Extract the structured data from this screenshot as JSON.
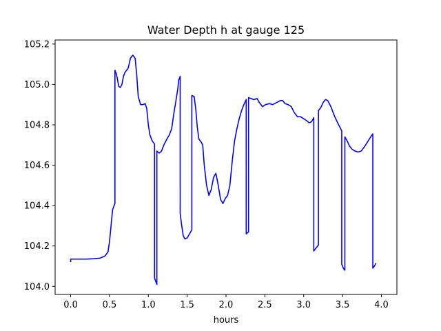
{
  "chart_data": {
    "type": "line",
    "title": "Water Depth h at gauge 125",
    "xlabel": "hours",
    "ylabel": "",
    "xlim": [
      -0.2,
      4.2
    ],
    "ylim": [
      103.96,
      105.22
    ],
    "xticks": [
      0.0,
      0.5,
      1.0,
      1.5,
      2.0,
      2.5,
      3.0,
      3.5,
      4.0
    ],
    "xtick_labels": [
      "0.0",
      "0.5",
      "1.0",
      "1.5",
      "2.0",
      "2.5",
      "3.0",
      "3.5",
      "4.0"
    ],
    "yticks": [
      104.0,
      104.2,
      104.4,
      104.6,
      104.8,
      105.0,
      105.2
    ],
    "ytick_labels": [
      "104.0",
      "104.2",
      "104.4",
      "104.6",
      "104.8",
      "105.0",
      "105.2"
    ],
    "grid": false,
    "series": [
      {
        "color": "#0000ff",
        "points": [
          [
            0.0,
            104.12
          ],
          [
            0.0,
            104.135
          ],
          [
            0.1,
            104.135
          ],
          [
            0.2,
            104.135
          ],
          [
            0.3,
            104.137
          ],
          [
            0.38,
            104.14
          ],
          [
            0.44,
            104.15
          ],
          [
            0.48,
            104.17
          ],
          [
            0.5,
            104.22
          ],
          [
            0.52,
            104.3
          ],
          [
            0.54,
            104.38
          ],
          [
            0.56,
            104.4
          ],
          [
            0.57,
            104.41
          ],
          [
            0.57,
            105.07
          ],
          [
            0.59,
            105.05
          ],
          [
            0.62,
            104.99
          ],
          [
            0.64,
            104.985
          ],
          [
            0.66,
            105.0
          ],
          [
            0.68,
            105.04
          ],
          [
            0.7,
            105.06
          ],
          [
            0.74,
            105.08
          ],
          [
            0.77,
            105.13
          ],
          [
            0.8,
            105.145
          ],
          [
            0.83,
            105.13
          ],
          [
            0.85,
            105.05
          ],
          [
            0.87,
            104.94
          ],
          [
            0.9,
            104.9
          ],
          [
            0.93,
            104.9
          ],
          [
            0.96,
            104.905
          ],
          [
            0.98,
            104.88
          ],
          [
            1.0,
            104.8
          ],
          [
            1.02,
            104.75
          ],
          [
            1.05,
            104.72
          ],
          [
            1.08,
            104.705
          ],
          [
            1.08,
            104.04
          ],
          [
            1.11,
            104.01
          ],
          [
            1.11,
            104.67
          ],
          [
            1.14,
            104.66
          ],
          [
            1.17,
            104.67
          ],
          [
            1.2,
            104.7
          ],
          [
            1.24,
            104.73
          ],
          [
            1.27,
            104.75
          ],
          [
            1.3,
            104.78
          ],
          [
            1.33,
            104.86
          ],
          [
            1.36,
            104.93
          ],
          [
            1.38,
            104.98
          ],
          [
            1.39,
            105.02
          ],
          [
            1.41,
            105.04
          ],
          [
            1.41,
            104.36
          ],
          [
            1.43,
            104.3
          ],
          [
            1.45,
            104.25
          ],
          [
            1.47,
            104.235
          ],
          [
            1.5,
            104.24
          ],
          [
            1.53,
            104.26
          ],
          [
            1.56,
            104.28
          ],
          [
            1.56,
            104.945
          ],
          [
            1.59,
            104.94
          ],
          [
            1.61,
            104.88
          ],
          [
            1.63,
            104.79
          ],
          [
            1.65,
            104.73
          ],
          [
            1.68,
            104.715
          ],
          [
            1.7,
            104.7
          ],
          [
            1.72,
            104.6
          ],
          [
            1.75,
            104.5
          ],
          [
            1.78,
            104.45
          ],
          [
            1.81,
            104.48
          ],
          [
            1.84,
            104.54
          ],
          [
            1.87,
            104.56
          ],
          [
            1.9,
            104.5
          ],
          [
            1.93,
            104.43
          ],
          [
            1.96,
            104.41
          ],
          [
            1.99,
            104.435
          ],
          [
            2.02,
            104.45
          ],
          [
            2.05,
            104.5
          ],
          [
            2.08,
            104.62
          ],
          [
            2.11,
            104.72
          ],
          [
            2.14,
            104.78
          ],
          [
            2.17,
            104.83
          ],
          [
            2.2,
            104.87
          ],
          [
            2.23,
            104.9
          ],
          [
            2.26,
            104.925
          ],
          [
            2.26,
            104.26
          ],
          [
            2.29,
            104.27
          ],
          [
            2.29,
            104.935
          ],
          [
            2.32,
            104.93
          ],
          [
            2.36,
            104.925
          ],
          [
            2.4,
            104.93
          ],
          [
            2.43,
            104.91
          ],
          [
            2.47,
            104.89
          ],
          [
            2.51,
            104.9
          ],
          [
            2.56,
            104.905
          ],
          [
            2.6,
            104.9
          ],
          [
            2.65,
            104.91
          ],
          [
            2.7,
            104.92
          ],
          [
            2.73,
            104.92
          ],
          [
            2.76,
            104.905
          ],
          [
            2.8,
            104.9
          ],
          [
            2.84,
            104.89
          ],
          [
            2.88,
            104.86
          ],
          [
            2.92,
            104.84
          ],
          [
            2.96,
            104.84
          ],
          [
            3.0,
            104.83
          ],
          [
            3.04,
            104.82
          ],
          [
            3.07,
            104.81
          ],
          [
            3.1,
            104.815
          ],
          [
            3.13,
            104.835
          ],
          [
            3.13,
            104.175
          ],
          [
            3.16,
            104.19
          ],
          [
            3.19,
            104.205
          ],
          [
            3.19,
            104.87
          ],
          [
            3.22,
            104.885
          ],
          [
            3.25,
            104.91
          ],
          [
            3.28,
            104.925
          ],
          [
            3.31,
            104.92
          ],
          [
            3.35,
            104.89
          ],
          [
            3.4,
            104.84
          ],
          [
            3.45,
            104.8
          ],
          [
            3.49,
            104.77
          ],
          [
            3.49,
            104.11
          ],
          [
            3.51,
            104.09
          ],
          [
            3.53,
            104.08
          ],
          [
            3.53,
            104.74
          ],
          [
            3.56,
            104.72
          ],
          [
            3.59,
            104.695
          ],
          [
            3.62,
            104.68
          ],
          [
            3.66,
            104.67
          ],
          [
            3.7,
            104.665
          ],
          [
            3.74,
            104.67
          ],
          [
            3.78,
            104.69
          ],
          [
            3.83,
            104.72
          ],
          [
            3.87,
            104.745
          ],
          [
            3.89,
            104.755
          ],
          [
            3.89,
            104.09
          ],
          [
            3.91,
            104.1
          ],
          [
            3.93,
            104.115
          ]
        ]
      }
    ]
  }
}
